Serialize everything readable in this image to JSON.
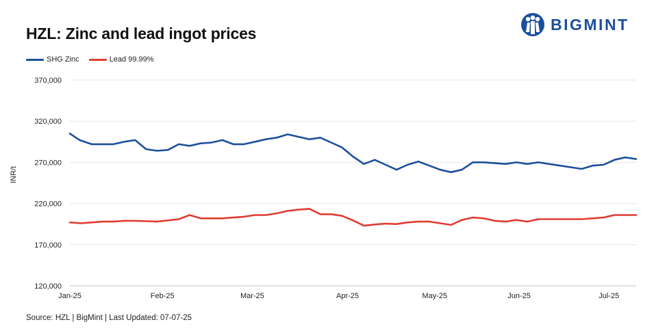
{
  "title": "HZL: Zinc and lead ingot prices",
  "logo": {
    "text": "BIGMINT",
    "icon": "bigmint-people-icon",
    "color": "#1b4f9c"
  },
  "source": "Source: HZL | BigMint | Last Updated: 07-07-25",
  "chart_data": {
    "type": "line",
    "ylabel": "INR/t",
    "ylim": [
      120000,
      370000
    ],
    "yticks": [
      120000,
      170000,
      220000,
      270000,
      320000,
      370000
    ],
    "ytick_labels": [
      "120,000",
      "170,000",
      "220,000",
      "270,000",
      "320,000",
      "370,000"
    ],
    "xlim": [
      0,
      52
    ],
    "xticks": [
      0,
      8.5,
      16.75,
      25.5,
      33.5,
      41.25,
      49.5
    ],
    "xtick_labels": [
      "Jan-25",
      "Feb-25",
      "Mar-25",
      "Apr-25",
      "May-25",
      "Jun-25",
      "Jul-25"
    ],
    "grid": true,
    "legend_position": "top-left",
    "series": [
      {
        "name": "SHG Zinc",
        "color": "#1b4f9c",
        "x": [
          0,
          0.9,
          2,
          3,
          4,
          5,
          6,
          7,
          8,
          9,
          10,
          11,
          12,
          13,
          14,
          15,
          16,
          17,
          18,
          19,
          20,
          21,
          22,
          23,
          24,
          25,
          26,
          27,
          28,
          29,
          30,
          31,
          32,
          33,
          34,
          35,
          36,
          37,
          38,
          39,
          40,
          41,
          42,
          43,
          44,
          45,
          46,
          47,
          48,
          49,
          50,
          51,
          52
        ],
        "values": [
          305000,
          297000,
          292000,
          292000,
          292000,
          295000,
          297000,
          286000,
          284000,
          285000,
          292000,
          290000,
          293000,
          294000,
          297000,
          292000,
          292000,
          295000,
          298000,
          300000,
          304000,
          301000,
          298000,
          300000,
          294000,
          288000,
          277000,
          268000,
          273000,
          267000,
          261000,
          267000,
          271000,
          266000,
          261000,
          258000,
          261000,
          270000,
          270000,
          269000,
          268000,
          270000,
          268000,
          270000,
          268000,
          266000,
          264000,
          262000,
          266000,
          267000,
          273000,
          276000,
          274000
        ]
      },
      {
        "name": "Lead 99.99%",
        "color": "#e03c31",
        "x": [
          0,
          1,
          2,
          3,
          4,
          5,
          6,
          7,
          8,
          9,
          10,
          11,
          12,
          13,
          14,
          15,
          16,
          17,
          18,
          19,
          20,
          21,
          22,
          23,
          24,
          25,
          26,
          27,
          28,
          29,
          30,
          31,
          32,
          33,
          34,
          35,
          36,
          37,
          38,
          39,
          40,
          41,
          42,
          43,
          44,
          45,
          46,
          47,
          48,
          49,
          50,
          51,
          52
        ],
        "values": [
          197000,
          196000,
          197000,
          198000,
          198000,
          199000,
          199000,
          198500,
          198000,
          199500,
          201000,
          206000,
          202000,
          202000,
          202000,
          203000,
          204000,
          206000,
          206000,
          208000,
          211000,
          212500,
          213500,
          207000,
          207000,
          205000,
          199500,
          193000,
          194500,
          195500,
          195000,
          197000,
          198000,
          198000,
          196000,
          194000,
          200000,
          203000,
          202000,
          199000,
          198000,
          200000,
          198000,
          201000,
          201000,
          201000,
          201000,
          201000,
          202000,
          203000,
          206000,
          206000,
          206000
        ]
      }
    ]
  }
}
